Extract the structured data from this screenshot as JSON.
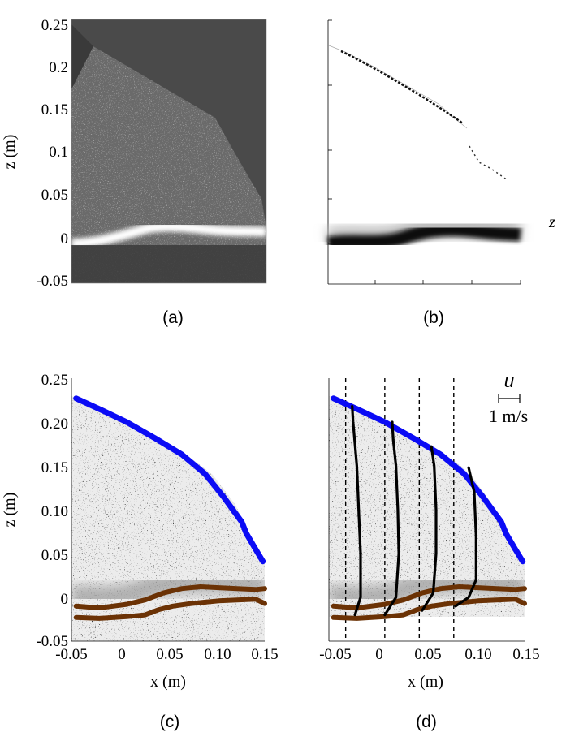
{
  "figure": {
    "panels": [
      {
        "id": "a",
        "label": "(a)"
      },
      {
        "id": "b",
        "label": "(b)"
      },
      {
        "id": "c",
        "label": "(c)"
      },
      {
        "id": "d",
        "label": "(d)"
      }
    ],
    "z_axis_label": "z (m)",
    "x_axis_label": "x (m)",
    "side_mark": "z",
    "velocity_scale": {
      "symbol": "u",
      "label": "1 m/s"
    }
  },
  "chart_data": [
    {
      "panel": "a",
      "type": "image",
      "ylabel": "z (m)",
      "yticks": [
        "0.25",
        "0.2",
        "0.15",
        "0.1",
        "0.05",
        "0",
        "-0.05"
      ],
      "ylim": [
        -0.05,
        0.25
      ]
    },
    {
      "panel": "b",
      "type": "image",
      "ylim": [
        -0.05,
        0.25
      ]
    },
    {
      "panel": "c",
      "type": "line",
      "xlabel": "x (m)",
      "ylabel": "z (m)",
      "xlim": [
        -0.06,
        0.15
      ],
      "ylim": [
        -0.05,
        0.25
      ],
      "xticks": [
        "-0.05",
        "0",
        "0.05",
        "0.10",
        "0.15"
      ],
      "yticks": [
        "0.25",
        "0.20",
        "0.15",
        "0.10",
        "0.05",
        "0",
        "-0.05"
      ],
      "series": [
        {
          "color": "#0b0bf5",
          "x": [
            -0.055,
            -0.03,
            0.0,
            0.03,
            0.06,
            0.085,
            0.105,
            0.125,
            0.13,
            0.14,
            0.148
          ],
          "y": [
            0.227,
            0.215,
            0.2,
            0.182,
            0.163,
            0.141,
            0.115,
            0.086,
            0.073,
            0.055,
            0.041
          ]
        },
        {
          "color": "#6b3205",
          "x": [
            -0.055,
            -0.03,
            0.0,
            0.02,
            0.04,
            0.06,
            0.08,
            0.1,
            0.12,
            0.14,
            0.15
          ],
          "y": [
            -0.01,
            -0.012,
            -0.008,
            -0.003,
            0.005,
            0.01,
            0.012,
            0.011,
            0.01,
            0.009,
            0.01
          ]
        },
        {
          "color": "#6b3205",
          "x": [
            -0.055,
            -0.03,
            0.0,
            0.02,
            0.035,
            0.05,
            0.07,
            0.1,
            0.12,
            0.14,
            0.15
          ],
          "y": [
            -0.023,
            -0.024,
            -0.022,
            -0.02,
            -0.014,
            -0.01,
            -0.007,
            -0.004,
            -0.003,
            -0.002,
            -0.007
          ]
        }
      ]
    },
    {
      "panel": "d",
      "type": "line",
      "xlabel": "x (m)",
      "xlim": [
        -0.06,
        0.15
      ],
      "ylim": [
        -0.05,
        0.25
      ],
      "xticks": [
        "-0.05",
        "0",
        "0.05",
        "0.10",
        "0.15"
      ],
      "series": [
        {
          "color": "#0b0bf5",
          "x": [
            -0.055,
            -0.03,
            0.0,
            0.03,
            0.06,
            0.085,
            0.105,
            0.125,
            0.13,
            0.14,
            0.148
          ],
          "y": [
            0.227,
            0.215,
            0.2,
            0.182,
            0.163,
            0.141,
            0.115,
            0.086,
            0.073,
            0.055,
            0.041
          ]
        },
        {
          "color": "#6b3205",
          "x": [
            -0.055,
            -0.03,
            0.0,
            0.02,
            0.04,
            0.06,
            0.08,
            0.1,
            0.12,
            0.14,
            0.15
          ],
          "y": [
            -0.01,
            -0.012,
            -0.008,
            -0.003,
            0.005,
            0.01,
            0.012,
            0.011,
            0.01,
            0.009,
            0.01
          ]
        },
        {
          "color": "#6b3205",
          "x": [
            -0.055,
            -0.03,
            0.0,
            0.02,
            0.035,
            0.05,
            0.07,
            0.1,
            0.12,
            0.14,
            0.15
          ],
          "y": [
            -0.023,
            -0.024,
            -0.022,
            -0.02,
            -0.014,
            -0.01,
            -0.007,
            -0.004,
            -0.003,
            -0.002,
            -0.007
          ]
        }
      ],
      "vertical_lines_x": [
        -0.042,
        0.0,
        0.037,
        0.074
      ],
      "velocity_profiles": [
        {
          "x0": -0.042,
          "points": [
            [
              -0.032,
              -0.02
            ],
            [
              -0.026,
              0.0
            ],
            [
              -0.026,
              0.05
            ],
            [
              -0.028,
              0.1
            ],
            [
              -0.03,
              0.15
            ],
            [
              -0.034,
              0.2
            ],
            [
              -0.035,
              0.218
            ]
          ]
        },
        {
          "x0": 0.0,
          "points": [
            [
              0.0,
              -0.02
            ],
            [
              0.012,
              0.0
            ],
            [
              0.015,
              0.05
            ],
            [
              0.014,
              0.1
            ],
            [
              0.012,
              0.15
            ],
            [
              0.009,
              0.18
            ],
            [
              0.008,
              0.2
            ]
          ]
        },
        {
          "x0": 0.037,
          "points": [
            [
              0.04,
              -0.015
            ],
            [
              0.052,
              0.005
            ],
            [
              0.055,
              0.05
            ],
            [
              0.055,
              0.1
            ],
            [
              0.053,
              0.15
            ],
            [
              0.05,
              0.172
            ]
          ]
        },
        {
          "x0": 0.074,
          "points": [
            [
              0.076,
              -0.01
            ],
            [
              0.09,
              0.0
            ],
            [
              0.098,
              0.02
            ],
            [
              0.098,
              0.07
            ],
            [
              0.096,
              0.12
            ],
            [
              0.09,
              0.148
            ]
          ]
        }
      ]
    }
  ]
}
